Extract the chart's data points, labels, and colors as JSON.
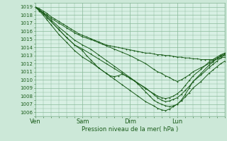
{
  "xlabel": "Pression niveau de la mer( hPa )",
  "xlim_days": [
    0,
    4.0
  ],
  "ylim": [
    1005.5,
    1019.5
  ],
  "yticks": [
    1006,
    1007,
    1008,
    1009,
    1010,
    1011,
    1012,
    1013,
    1014,
    1015,
    1016,
    1017,
    1018,
    1019
  ],
  "xtick_labels": [
    "Ven",
    "Sam",
    "Dim",
    "Lun"
  ],
  "xtick_positions": [
    0.0,
    1.0,
    2.0,
    3.0
  ],
  "bg_color": "#cce8d8",
  "plot_bg_color": "#d8f0e4",
  "grid_color": "#88b898",
  "line_color": "#1a5c1a",
  "line_width": 0.7,
  "marker_size": 2.0,
  "font_color": "#1a5c1a",
  "lines": [
    {
      "x": [
        0.0,
        0.083,
        0.167,
        0.25,
        0.333,
        0.417,
        0.5,
        0.583,
        0.667,
        0.75,
        0.833,
        0.917,
        1.0,
        1.083,
        1.167,
        1.25,
        1.333,
        1.417,
        1.5,
        1.583,
        1.667,
        1.75,
        1.833,
        1.917,
        2.0,
        2.083,
        2.167,
        2.25,
        2.333,
        2.417,
        2.5,
        2.583,
        2.667,
        2.75,
        2.833,
        2.917,
        3.0,
        3.083,
        3.167,
        3.25,
        3.333,
        3.417,
        3.5,
        3.583,
        3.667,
        3.75,
        3.833,
        3.917,
        4.0
      ],
      "y": [
        1019.0,
        1018.8,
        1018.5,
        1018.2,
        1017.8,
        1017.5,
        1017.2,
        1016.9,
        1016.6,
        1016.3,
        1016.0,
        1015.7,
        1015.5,
        1015.3,
        1015.1,
        1014.9,
        1014.7,
        1014.5,
        1014.3,
        1014.2,
        1014.1,
        1014.0,
        1013.9,
        1013.8,
        1013.7,
        1013.6,
        1013.5,
        1013.4,
        1013.3,
        1013.3,
        1013.2,
        1013.1,
        1013.1,
        1013.0,
        1013.0,
        1012.9,
        1012.8,
        1012.8,
        1012.7,
        1012.7,
        1012.6,
        1012.6,
        1012.5,
        1012.5,
        1012.5,
        1012.5,
        1012.6,
        1012.7,
        1012.8
      ]
    },
    {
      "x": [
        0.0,
        0.083,
        0.167,
        0.25,
        0.333,
        0.5,
        0.667,
        0.833,
        1.0,
        1.167,
        1.333,
        1.5,
        1.667,
        1.833,
        2.0,
        2.167,
        2.333,
        2.5,
        2.583,
        2.667,
        2.75,
        2.833,
        2.917,
        3.0,
        3.083,
        3.167,
        3.25,
        3.333,
        3.5,
        3.667,
        3.75,
        3.833,
        3.917,
        4.0
      ],
      "y": [
        1019.0,
        1018.7,
        1018.3,
        1018.0,
        1017.6,
        1017.0,
        1016.4,
        1015.8,
        1015.3,
        1015.0,
        1014.6,
        1014.2,
        1013.8,
        1013.4,
        1013.0,
        1012.5,
        1012.0,
        1011.3,
        1011.0,
        1010.8,
        1010.5,
        1010.3,
        1010.0,
        1009.8,
        1010.0,
        1010.3,
        1010.6,
        1011.0,
        1011.5,
        1012.0,
        1012.3,
        1012.6,
        1012.9,
        1013.1
      ]
    },
    {
      "x": [
        0.0,
        0.083,
        0.167,
        0.25,
        0.333,
        0.5,
        0.667,
        0.833,
        1.0,
        1.167,
        1.333,
        1.5,
        1.667,
        1.833,
        2.0,
        2.167,
        2.333,
        2.5,
        2.583,
        2.667,
        2.75,
        2.833,
        2.917,
        3.0,
        3.083,
        3.167,
        3.25,
        3.333,
        3.5,
        3.667,
        3.75,
        3.833,
        3.917,
        4.0
      ],
      "y": [
        1019.0,
        1018.6,
        1018.2,
        1017.7,
        1017.2,
        1016.2,
        1015.2,
        1014.3,
        1013.8,
        1013.2,
        1012.6,
        1012.0,
        1011.4,
        1010.8,
        1010.2,
        1009.6,
        1009.0,
        1008.2,
        1007.8,
        1007.5,
        1007.3,
        1007.4,
        1007.6,
        1007.8,
        1008.2,
        1008.7,
        1009.2,
        1009.8,
        1010.6,
        1011.5,
        1011.9,
        1012.3,
        1012.7,
        1013.1
      ]
    },
    {
      "x": [
        0.0,
        0.083,
        0.167,
        0.25,
        0.333,
        0.5,
        0.667,
        0.833,
        1.0,
        1.167,
        1.333,
        1.5,
        1.667,
        1.833,
        2.0,
        2.167,
        2.333,
        2.5,
        2.583,
        2.667,
        2.75,
        2.833,
        2.917,
        3.0,
        3.083,
        3.167,
        3.25,
        3.333,
        3.5,
        3.667,
        3.75,
        3.833,
        3.917,
        4.0
      ],
      "y": [
        1019.0,
        1018.5,
        1018.0,
        1017.4,
        1016.8,
        1015.6,
        1014.6,
        1013.6,
        1012.8,
        1012.2,
        1011.5,
        1010.8,
        1010.1,
        1009.4,
        1008.7,
        1008.0,
        1007.3,
        1006.8,
        1006.5,
        1006.3,
        1006.2,
        1006.4,
        1006.7,
        1007.0,
        1007.5,
        1008.2,
        1009.0,
        1009.8,
        1010.8,
        1011.8,
        1012.2,
        1012.6,
        1013.0,
        1013.2
      ]
    },
    {
      "x": [
        0.0,
        0.083,
        0.167,
        0.25,
        0.333,
        0.5,
        0.667,
        0.833,
        1.0,
        1.167,
        1.333,
        1.5,
        1.667,
        1.833,
        2.0,
        2.167,
        2.333,
        2.5,
        2.583,
        2.667,
        2.75,
        2.833,
        2.917,
        3.0,
        3.083,
        3.167,
        3.25,
        3.333,
        3.5,
        3.667,
        3.75,
        3.833,
        3.917,
        4.0
      ],
      "y": [
        1019.0,
        1018.65,
        1018.3,
        1017.9,
        1017.4,
        1016.5,
        1015.7,
        1014.9,
        1014.3,
        1013.8,
        1013.1,
        1012.4,
        1011.7,
        1011.0,
        1010.3,
        1009.6,
        1008.9,
        1008.3,
        1008.0,
        1007.8,
        1007.7,
        1007.8,
        1008.0,
        1008.3,
        1008.7,
        1009.3,
        1009.9,
        1010.5,
        1011.3,
        1012.2,
        1012.5,
        1012.8,
        1013.1,
        1013.3
      ]
    },
    {
      "x": [
        0.0,
        0.083,
        0.167,
        0.25,
        0.333,
        0.5,
        0.667,
        0.833,
        1.0,
        1.083,
        1.167,
        1.25,
        1.333,
        1.5,
        1.583,
        1.667,
        1.75,
        1.833,
        1.917,
        2.0,
        2.083,
        2.167,
        2.25,
        2.333,
        2.417,
        2.5,
        2.583,
        2.667,
        2.75,
        2.833,
        2.917,
        3.0,
        3.083,
        3.167,
        3.25,
        3.333,
        3.5,
        3.667,
        3.75,
        3.833,
        3.917,
        4.0
      ],
      "y": [
        1019.0,
        1018.6,
        1018.2,
        1017.7,
        1017.2,
        1016.2,
        1015.2,
        1014.3,
        1013.6,
        1013.0,
        1012.5,
        1012.0,
        1011.5,
        1010.8,
        1010.5,
        1010.4,
        1010.5,
        1010.7,
        1010.5,
        1010.2,
        1009.9,
        1009.5,
        1009.0,
        1008.5,
        1008.0,
        1007.5,
        1007.2,
        1007.0,
        1006.8,
        1006.7,
        1006.8,
        1007.0,
        1007.4,
        1007.9,
        1008.4,
        1009.0,
        1009.8,
        1010.8,
        1011.2,
        1011.6,
        1012.0,
        1012.3
      ]
    }
  ]
}
